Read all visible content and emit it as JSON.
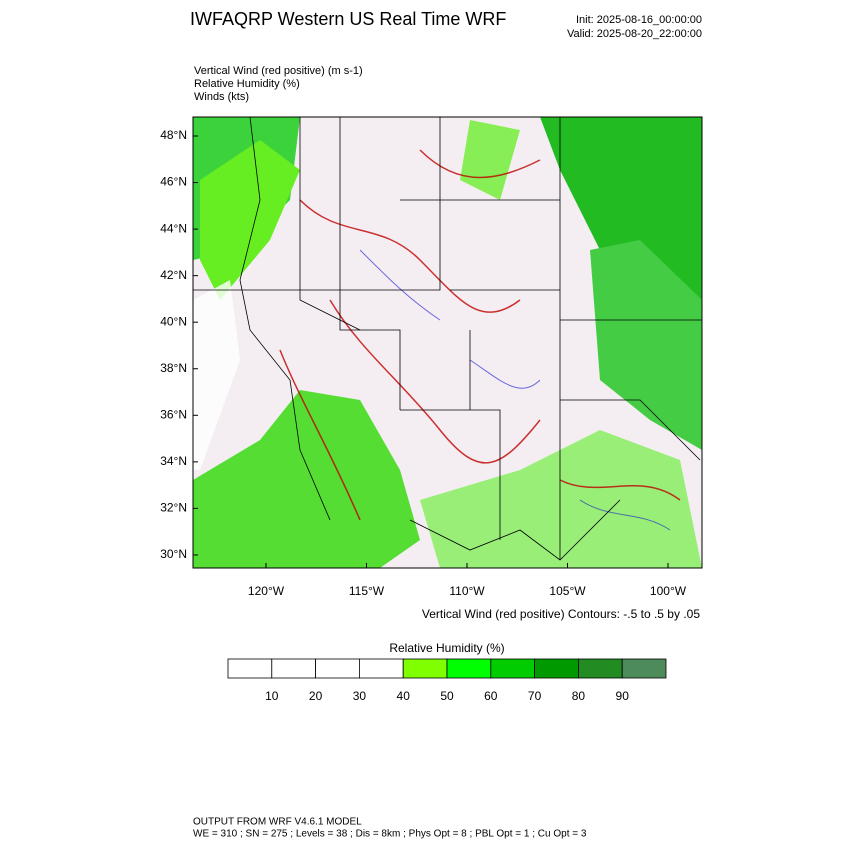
{
  "header": {
    "title": "IWFAQRP Western US Real Time WRF",
    "init": "Init: 2025-08-16_00:00:00",
    "valid": "Valid: 2025-08-20_22:00:00"
  },
  "fields": [
    "Vertical Wind (red positive)   (m s-1)",
    "Relative Humidity   (%)",
    "Winds   (kts)"
  ],
  "map": {
    "lat_labels": [
      "48°N",
      "46°N",
      "44°N",
      "42°N",
      "40°N",
      "38°N",
      "36°N",
      "34°N",
      "32°N",
      "30°N"
    ],
    "lon_labels": [
      "120°W",
      "115°W",
      "110°W",
      "105°W",
      "100°W"
    ],
    "contour_note": "Vertical Wind (red positive) Contours: -.5 to .5 by .05"
  },
  "colorbar": {
    "title": "Relative Humidity  (%)",
    "colors": [
      "#ffffff",
      "#ffffff",
      "#ffffff",
      "#ffffff",
      "#80ff00",
      "#00ff00",
      "#00cc00",
      "#009900",
      "#228b22",
      "#4e8b5a"
    ],
    "labels": [
      10,
      20,
      30,
      40,
      50,
      60,
      70,
      80,
      90
    ]
  },
  "footer": {
    "line1": "OUTPUT FROM WRF V4.6.1 MODEL",
    "line2": "WE = 310 ; SN = 275 ; Levels = 38 ; Dis = 8km ; Phys Opt = 8 ; PBL Opt = 1 ; Cu Opt = 3"
  }
}
